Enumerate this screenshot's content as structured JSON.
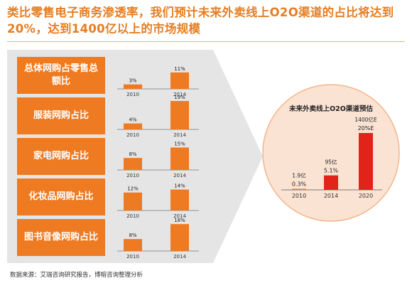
{
  "title": "类比零售电子商务渗透率，我们预计未来外卖线上O2O渠道的占比将达到20%，达到1400亿以上的市场规模",
  "colors": {
    "accent": "#ee7a22",
    "panel": "#e5e5e5",
    "circle": "#fbe3d3",
    "circle_border": "#f3b58a",
    "bar_red": "#e2231a"
  },
  "chart_data": [
    {
      "type": "bar",
      "label": "总体网购占零售总额比",
      "categories": [
        "2010",
        "2014"
      ],
      "values": [
        3,
        11
      ],
      "value_labels": [
        "3%",
        "11%"
      ],
      "ylim": [
        0,
        22
      ]
    },
    {
      "type": "bar",
      "label": "服装网购占比",
      "categories": [
        "2010",
        "2014"
      ],
      "values": [
        4,
        19
      ],
      "value_labels": [
        "4%",
        "19%"
      ],
      "ylim": [
        0,
        22
      ]
    },
    {
      "type": "bar",
      "label": "家电网购占比",
      "categories": [
        "2010",
        "2014"
      ],
      "values": [
        8,
        15
      ],
      "value_labels": [
        "8%",
        "15%"
      ],
      "ylim": [
        0,
        22
      ]
    },
    {
      "type": "bar",
      "label": "化妆品网购占比",
      "categories": [
        "2010",
        "2014"
      ],
      "values": [
        12,
        14
      ],
      "value_labels": [
        "12%",
        "14%"
      ],
      "ylim": [
        0,
        22
      ]
    },
    {
      "type": "bar",
      "label": "图书音像网购占比",
      "categories": [
        "2010",
        "2014"
      ],
      "values": [
        8,
        18
      ],
      "value_labels": [
        "8%",
        "18%"
      ],
      "ylim": [
        0,
        22
      ]
    },
    {
      "type": "bar",
      "title": "未来外卖线上O2O渠道预估",
      "categories": [
        "2010",
        "2014",
        "2020"
      ],
      "values": [
        0.3,
        5.1,
        20
      ],
      "value_labels": [
        "0.3%",
        "5.1%",
        "20%E"
      ],
      "amount_labels": [
        "1.9亿",
        "95亿",
        "1400亿E"
      ],
      "ylim": [
        0,
        22
      ]
    }
  ],
  "footer": "数据来源：艾瑞咨询研究报告，博榕咨询整理分析"
}
